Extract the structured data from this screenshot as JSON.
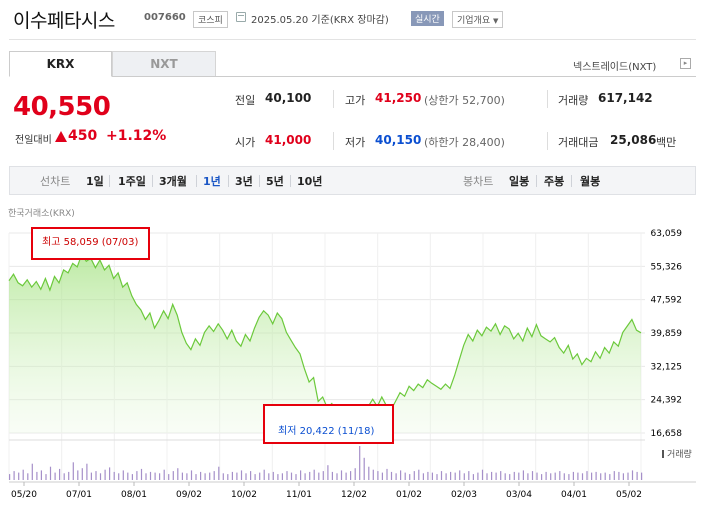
{
  "header": {
    "name": "이수페타시스",
    "code": "007660",
    "market": "코스피",
    "as_of": "2025.05.20  기준(KRX 장마감)",
    "realtime": "실시간",
    "overview": "기업개요"
  },
  "tabs": {
    "krx": "KRX",
    "nxt": "NXT",
    "nxt_link": "넥스트레이드(NXT)"
  },
  "price": {
    "current": "40,550",
    "change_label": "전일대비",
    "change": "450",
    "change_rate": "+1.12%",
    "direction": "up"
  },
  "stats": {
    "prev_close_label": "전일",
    "prev_close": "40,100",
    "high_label": "고가",
    "high": "41,250",
    "upper_limit": "(상한가 52,700)",
    "volume_label": "거래량",
    "volume": "617,142",
    "open_label": "시가",
    "open": "41,000",
    "low_label": "저가",
    "low": "40,150",
    "lower_limit": "(하한가 28,400)",
    "value_label": "거래대금",
    "value": "25,086",
    "value_unit": "백만"
  },
  "period_bar": {
    "line_label": "선차트",
    "periods": [
      "1일",
      "1주일",
      "3개월",
      "1년",
      "3년",
      "5년",
      "10년"
    ],
    "selected": "1년",
    "candle_label": "봉차트",
    "candles": [
      "일봉",
      "주봉",
      "월봉"
    ]
  },
  "chart_source": "한국거래소(KRX)",
  "chart_data": {
    "type": "area",
    "y_ticks": [
      "63,059",
      "55,326",
      "47,592",
      "39,859",
      "32,125",
      "24,392",
      "16,658"
    ],
    "ylim": [
      16658,
      63059
    ],
    "x_ticks": [
      "05/20",
      "07/01",
      "08/01",
      "09/02",
      "10/02",
      "11/01",
      "12/02",
      "01/02",
      "02/03",
      "03/04",
      "04/01",
      "05/02"
    ],
    "high_label": "최고 58,059 (07/03)",
    "low_label": "최저 20,422 (11/18)",
    "volume_legend": "거래량",
    "series": [
      {
        "values": [
          52000,
          53500,
          51500,
          50800,
          52200,
          50500,
          51800,
          50000,
          52500,
          49800,
          53000,
          51500,
          54500,
          53800,
          56000,
          55200,
          58059,
          56500,
          57200,
          55000,
          56800,
          54500,
          55600,
          52500,
          53800,
          50500,
          51500,
          48500,
          46500,
          45200,
          43000,
          44500,
          41000,
          42800,
          45000,
          43200,
          46500,
          44000,
          40000,
          37500,
          36000,
          38500,
          37000,
          40000,
          41500,
          40200,
          42000,
          40500,
          38500,
          40500,
          38000,
          36800,
          39500,
          38000,
          41000,
          43500,
          45000,
          44000,
          42000,
          44500,
          43200,
          40000,
          38200,
          36500,
          35000,
          31500,
          28500,
          29500,
          24000,
          25000,
          22500,
          23500,
          21000,
          20422,
          21500,
          22200,
          21200,
          22500,
          21800,
          22800,
          24500,
          22800,
          25000,
          23000,
          22000,
          24000,
          26000,
          25200,
          27500,
          26500,
          28000,
          27200,
          29000,
          28200,
          27500,
          26800,
          28000,
          27000,
          30000,
          33500,
          37000,
          39500,
          38000,
          40500,
          39200,
          41200,
          40300,
          42000,
          39500,
          41500,
          40800,
          38500,
          39800,
          38000,
          41000,
          39000,
          41800,
          39200,
          38500,
          37800,
          38800,
          36500,
          35200,
          37000,
          33800,
          35000,
          32500,
          34000,
          33200,
          35500,
          34000,
          36500,
          35200,
          37800,
          36800,
          40000,
          41500,
          43000,
          40500,
          39900
        ]
      }
    ],
    "volume": [
      8,
      12,
      10,
      14,
      9,
      22,
      11,
      13,
      8,
      18,
      10,
      15,
      9,
      11,
      24,
      13,
      16,
      22,
      10,
      12,
      9,
      14,
      17,
      11,
      9,
      13,
      10,
      8,
      12,
      15,
      9,
      11,
      10,
      9,
      14,
      8,
      12,
      16,
      10,
      9,
      13,
      8,
      11,
      9,
      10,
      12,
      18,
      9,
      8,
      11,
      10,
      13,
      9,
      12,
      8,
      10,
      14,
      9,
      11,
      8,
      9,
      12,
      10,
      8,
      13,
      9,
      11,
      14,
      10,
      12,
      20,
      11,
      9,
      13,
      10,
      12,
      16,
      46,
      30,
      18,
      14,
      12,
      10,
      15,
      11,
      9,
      13,
      10,
      8,
      12,
      14,
      9,
      11,
      10,
      8,
      12,
      9,
      11,
      10,
      13,
      9,
      12,
      8,
      10,
      14,
      9,
      11,
      10,
      12,
      9,
      8,
      11,
      10,
      13,
      9,
      12,
      10,
      8,
      11,
      9,
      10,
      12,
      9,
      8,
      11,
      10,
      9,
      12,
      10,
      11,
      9,
      10,
      8,
      12,
      11,
      9,
      10,
      13,
      11,
      10
    ]
  }
}
